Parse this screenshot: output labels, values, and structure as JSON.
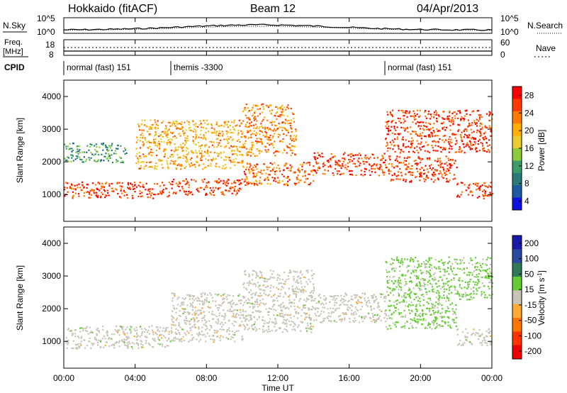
{
  "header": {
    "title": "Hokkaido (fitACF)",
    "beam": "Beam 12",
    "date": "04/Apr/2013"
  },
  "top_panels": {
    "nsky_label": "N.Sky",
    "nsky_ticks": [
      "10^5",
      "10^0"
    ],
    "nsearch_label": "N.Search",
    "nsearch_ticks": [
      "10^5",
      "10^0"
    ],
    "freq_label_1": "Freq.",
    "freq_label_2": "[MHz]",
    "freq_ticks": [
      "18",
      "8"
    ],
    "nave_label": "Nave",
    "nave_ticks": [
      "60",
      "0"
    ],
    "cpid_label": "CPID",
    "cpid_segments": [
      {
        "label": "normal (fast) 151",
        "start_hour": 0,
        "end_hour": 6
      },
      {
        "label": "themis -3300",
        "start_hour": 6,
        "end_hour": 18
      },
      {
        "label": "normal (fast) 151",
        "start_hour": 18,
        "end_hour": 24
      }
    ]
  },
  "colorbars": {
    "power": {
      "label": "Power [dB]",
      "ticks": [
        "28",
        "24",
        "20",
        "16",
        "12",
        "8",
        "4"
      ],
      "colors": [
        "#ff0000",
        "#ff3a00",
        "#ff7a00",
        "#ffb000",
        "#e8cc30",
        "#8ccc3a",
        "#3c9c6a",
        "#2a7a7a",
        "#1e5aa0",
        "#1010e0"
      ]
    },
    "velocity": {
      "label": "Velocity [m s",
      "label_sup": "-1",
      "label_end": "]",
      "ticks": [
        "200",
        "100",
        "50",
        "15",
        "-15",
        "-50",
        "-100",
        "-200"
      ],
      "colors": [
        "#1a1aa8",
        "#2a4aa0",
        "#2f7a55",
        "#66cc33",
        "#c8c4b8",
        "#ffaa33",
        "#ff7700",
        "#ff3300",
        "#ee0000"
      ]
    }
  },
  "chart_data": {
    "type": "heatmap",
    "x_axis": {
      "label": "Time UT",
      "range_hours": [
        0,
        24
      ],
      "tick_labels": [
        "00:00",
        "04:00",
        "08:00",
        "12:00",
        "16:00",
        "20:00",
        "00:00"
      ]
    },
    "y_axis": {
      "label": "Slant Range [km]",
      "range_km": [
        180,
        4500
      ],
      "tick_labels": [
        "1000",
        "2000",
        "3000",
        "4000"
      ]
    },
    "panels": [
      {
        "name": "power",
        "units": "dB",
        "scale": [
          0,
          30
        ],
        "echo_bands": [
          {
            "start_hour": 0,
            "end_hour": 6,
            "range_km": [
              900,
              1400
            ],
            "value": 26
          },
          {
            "start_hour": 6,
            "end_hour": 10,
            "range_km": [
              1000,
              1500
            ],
            "value": 26
          },
          {
            "start_hour": 10,
            "end_hour": 14,
            "range_km": [
              1300,
              2000
            ],
            "value": 24
          },
          {
            "start_hour": 14,
            "end_hour": 18,
            "range_km": [
              1600,
              2300
            ],
            "value": 26
          },
          {
            "start_hour": 18,
            "end_hour": 22,
            "range_km": [
              1400,
              2200
            ],
            "value": 26
          },
          {
            "start_hour": 22,
            "end_hour": 24,
            "range_km": [
              900,
              1400
            ],
            "value": 26
          },
          {
            "start_hour": 0,
            "end_hour": 3.5,
            "range_km": [
              2000,
              2600
            ],
            "value": 10
          },
          {
            "start_hour": 4,
            "end_hour": 10,
            "range_km": [
              1800,
              3300
            ],
            "value": 20
          },
          {
            "start_hour": 10,
            "end_hour": 13,
            "range_km": [
              2200,
              3800
            ],
            "value": 22
          },
          {
            "start_hour": 18,
            "end_hour": 24,
            "range_km": [
              2300,
              3600
            ],
            "value": 26
          }
        ]
      },
      {
        "name": "velocity",
        "units": "m s-1",
        "scale": [
          -250,
          250
        ],
        "echo_bands": [
          {
            "start_hour": 0,
            "end_hour": 6,
            "range_km": [
              800,
              1500
            ],
            "value": 0
          },
          {
            "start_hour": 6,
            "end_hour": 10,
            "range_km": [
              1000,
              2500
            ],
            "value": 0
          },
          {
            "start_hour": 10,
            "end_hour": 14,
            "range_km": [
              1300,
              3200
            ],
            "value": 0
          },
          {
            "start_hour": 14,
            "end_hour": 18,
            "range_km": [
              1600,
              2500
            ],
            "value": 0
          },
          {
            "start_hour": 18,
            "end_hour": 22,
            "range_km": [
              1400,
              2300
            ],
            "value": 40
          },
          {
            "start_hour": 18,
            "end_hour": 24,
            "range_km": [
              2300,
              3600
            ],
            "value": 40
          },
          {
            "start_hour": 22,
            "end_hour": 24,
            "range_km": [
              900,
              1400
            ],
            "value": 0
          }
        ]
      }
    ]
  }
}
